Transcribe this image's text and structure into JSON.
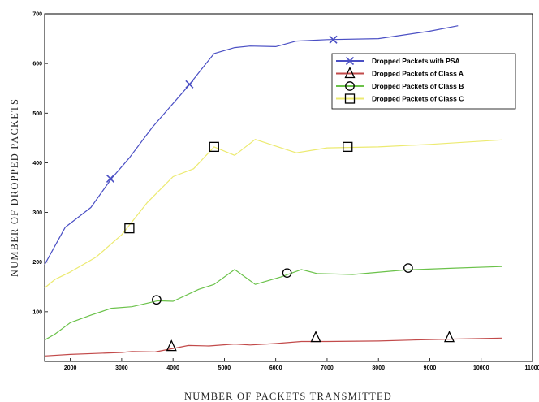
{
  "chart_data": {
    "type": "line",
    "xlabel": "NUMBER OF PACKETS TRANSMITTED",
    "ylabel": "NUMBER OF DROPPED PACKETS",
    "xlim": [
      1500,
      11000
    ],
    "ylim": [
      0,
      700
    ],
    "xticks": [
      2000,
      3000,
      4000,
      5000,
      6000,
      7000,
      8000,
      9000,
      10000,
      11000
    ],
    "yticks": [
      100,
      200,
      300,
      400,
      500,
      600,
      700
    ],
    "grid": false,
    "legend_position": "top-right",
    "series": [
      {
        "name": "Dropped Packets with PSA",
        "color": "#4a4fc4",
        "marker": "x",
        "x": [
          1500,
          1900,
          2400,
          2800,
          3150,
          3600,
          4300,
          4550,
          4800,
          5200,
          5500,
          6000,
          6400,
          7000,
          8000,
          9000,
          9550
        ],
        "y": [
          195,
          270,
          310,
          368,
          410,
          472,
          555,
          588,
          620,
          632,
          635,
          634,
          645,
          648,
          650,
          665,
          676
        ],
        "markers": [
          [
            2780,
            368
          ],
          [
            4320,
            558
          ],
          [
            7120,
            648
          ]
        ]
      },
      {
        "name": "Dropped Packets of Class A",
        "color": "#c24a4a",
        "marker": "triangle",
        "x": [
          1500,
          2000,
          2500,
          3000,
          3200,
          3650,
          4000,
          4300,
          4700,
          5200,
          5500,
          6000,
          6500,
          7000,
          8000,
          9000,
          10400
        ],
        "y": [
          11,
          14,
          16,
          18,
          20,
          19,
          26,
          32,
          31,
          35,
          33,
          36,
          40,
          40,
          41,
          44,
          47
        ],
        "markers": [
          [
            3970,
            30
          ],
          [
            6780,
            48
          ],
          [
            9380,
            48
          ]
        ]
      },
      {
        "name": "Dropped Packets of Class B",
        "color": "#6bc24a",
        "marker": "circle",
        "x": [
          1500,
          1700,
          2000,
          2400,
          2800,
          3200,
          3700,
          4000,
          4500,
          4800,
          5200,
          5600,
          6100,
          6500,
          6800,
          7500,
          8500,
          9500,
          10400
        ],
        "y": [
          43,
          55,
          78,
          93,
          107,
          110,
          122,
          121,
          145,
          155,
          185,
          155,
          170,
          185,
          177,
          175,
          184,
          188,
          191
        ],
        "markers": [
          [
            3680,
            124
          ],
          [
            6220,
            178
          ],
          [
            8580,
            188
          ]
        ]
      },
      {
        "name": "Dropped Packets of Class C",
        "color": "#ecea70",
        "marker": "square",
        "x": [
          1500,
          1700,
          2000,
          2500,
          3000,
          3500,
          4000,
          4400,
          4800,
          5200,
          5600,
          6400,
          7000,
          8000,
          9000,
          10400
        ],
        "y": [
          148,
          165,
          180,
          210,
          255,
          320,
          372,
          388,
          432,
          415,
          447,
          420,
          430,
          432,
          437,
          446
        ],
        "markers": [
          [
            3150,
            268
          ],
          [
            4800,
            432
          ],
          [
            7400,
            432
          ]
        ]
      }
    ]
  }
}
